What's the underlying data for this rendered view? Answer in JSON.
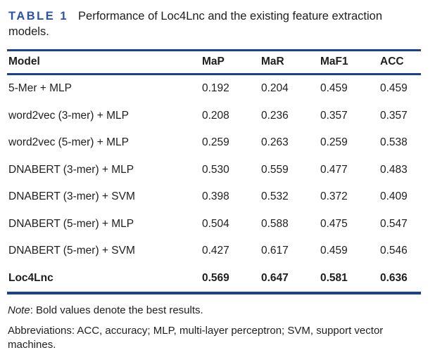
{
  "caption": {
    "label": "TABLE 1",
    "text": "Performance of Loc4Lnc and the existing feature extraction models."
  },
  "table": {
    "columns": [
      "Model",
      "MaP",
      "MaR",
      "MaF1",
      "ACC"
    ],
    "rows": [
      {
        "model": "5-Mer + MLP",
        "values": [
          "0.192",
          "0.204",
          "0.459",
          "0.459"
        ]
      },
      {
        "model": "word2vec (3-mer) + MLP",
        "values": [
          "0.208",
          "0.236",
          "0.357",
          "0.357"
        ]
      },
      {
        "model": "word2vec (5-mer) + MLP",
        "values": [
          "0.259",
          "0.263",
          "0.259",
          "0.538"
        ]
      },
      {
        "model": "DNABERT (3-mer) + MLP",
        "values": [
          "0.530",
          "0.559",
          "0.477",
          "0.483"
        ]
      },
      {
        "model": "DNABERT (3-mer) + SVM",
        "values": [
          "0.398",
          "0.532",
          "0.372",
          "0.409"
        ]
      },
      {
        "model": "DNABERT (5-mer) + MLP",
        "values": [
          "0.504",
          "0.588",
          "0.475",
          "0.547"
        ]
      },
      {
        "model": "DNABERT (5-mer) + SVM",
        "values": [
          "0.427",
          "0.617",
          "0.459",
          "0.546"
        ]
      },
      {
        "model": "Loc4Lnc",
        "values": [
          "0.569",
          "0.647",
          "0.581",
          "0.636"
        ],
        "best": true
      }
    ]
  },
  "footnotes": {
    "note_label": "Note",
    "note_text": ": Bold values denote the best results.",
    "abbreviations": "Abbreviations: ACC, accuracy; MLP, multi-layer perceptron; SVM, support vector machines."
  },
  "colors": {
    "accent_blue": "#2b52a8",
    "rule_blue": "#1b4195",
    "text": "#1e1e1e"
  }
}
